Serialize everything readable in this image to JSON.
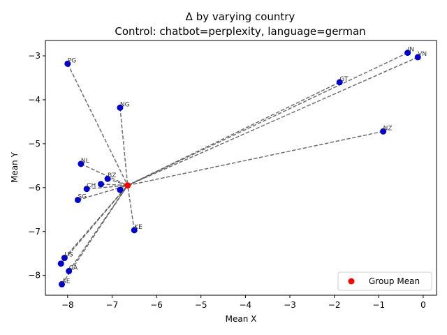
{
  "chart_data": {
    "type": "scatter",
    "title": "Δ by varying country",
    "subtitle": "Control: chatbot=perplexity, language=german",
    "xlabel": "Mean X",
    "ylabel": "Mean Y",
    "xlim": [
      -8.5,
      0.3
    ],
    "ylim": [
      -8.45,
      -2.65
    ],
    "xticks": [
      -8,
      -7,
      -6,
      -5,
      -4,
      -3,
      -2,
      -1,
      0
    ],
    "yticks": [
      -8,
      -7,
      -6,
      -5,
      -4,
      -3
    ],
    "grid": false,
    "legend": {
      "position": "lower-right",
      "entries": [
        "Group Mean"
      ]
    },
    "group_mean": {
      "x": -6.65,
      "y": -5.95
    },
    "points": [
      {
        "label": "PG",
        "x": -8.0,
        "y": -3.18
      },
      {
        "label": "NG",
        "x": -6.82,
        "y": -4.18
      },
      {
        "label": "IN",
        "x": -0.35,
        "y": -2.93
      },
      {
        "label": "VN",
        "x": -0.12,
        "y": -3.03
      },
      {
        "label": "GT",
        "x": -1.88,
        "y": -3.6
      },
      {
        "label": "NZ",
        "x": -0.9,
        "y": -4.72
      },
      {
        "label": "NL",
        "x": -7.7,
        "y": -5.46
      },
      {
        "label": "BZ",
        "x": -7.1,
        "y": -5.8
      },
      {
        "label": "CH",
        "x": -7.57,
        "y": -6.03
      },
      {
        "label": "",
        "x": -7.25,
        "y": -5.92
      },
      {
        "label": "",
        "x": -6.82,
        "y": -6.05
      },
      {
        "label": "SG",
        "x": -7.77,
        "y": -6.28
      },
      {
        "label": "KE",
        "x": -6.5,
        "y": -6.97
      },
      {
        "label": "US",
        "x": -8.07,
        "y": -7.6
      },
      {
        "label": "",
        "x": -8.15,
        "y": -7.73
      },
      {
        "label": "CA",
        "x": -7.97,
        "y": -7.9
      },
      {
        "label": "AE",
        "x": -8.13,
        "y": -8.2
      }
    ],
    "colors": {
      "points": "#0000cc",
      "mean": "#ff0000",
      "lines": "#555555"
    }
  }
}
